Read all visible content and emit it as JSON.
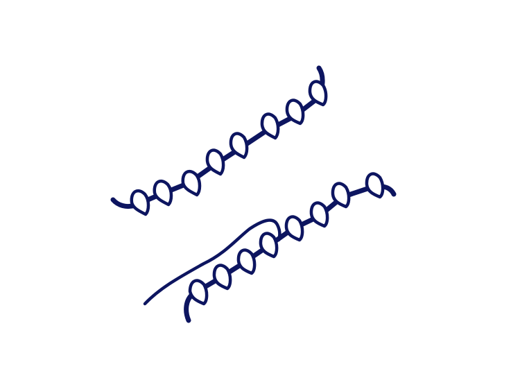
{
  "image": {
    "background_color": "#ffffff",
    "stroke_color": "#0d1560",
    "icon": "coiled-spring-lines-icon"
  }
}
